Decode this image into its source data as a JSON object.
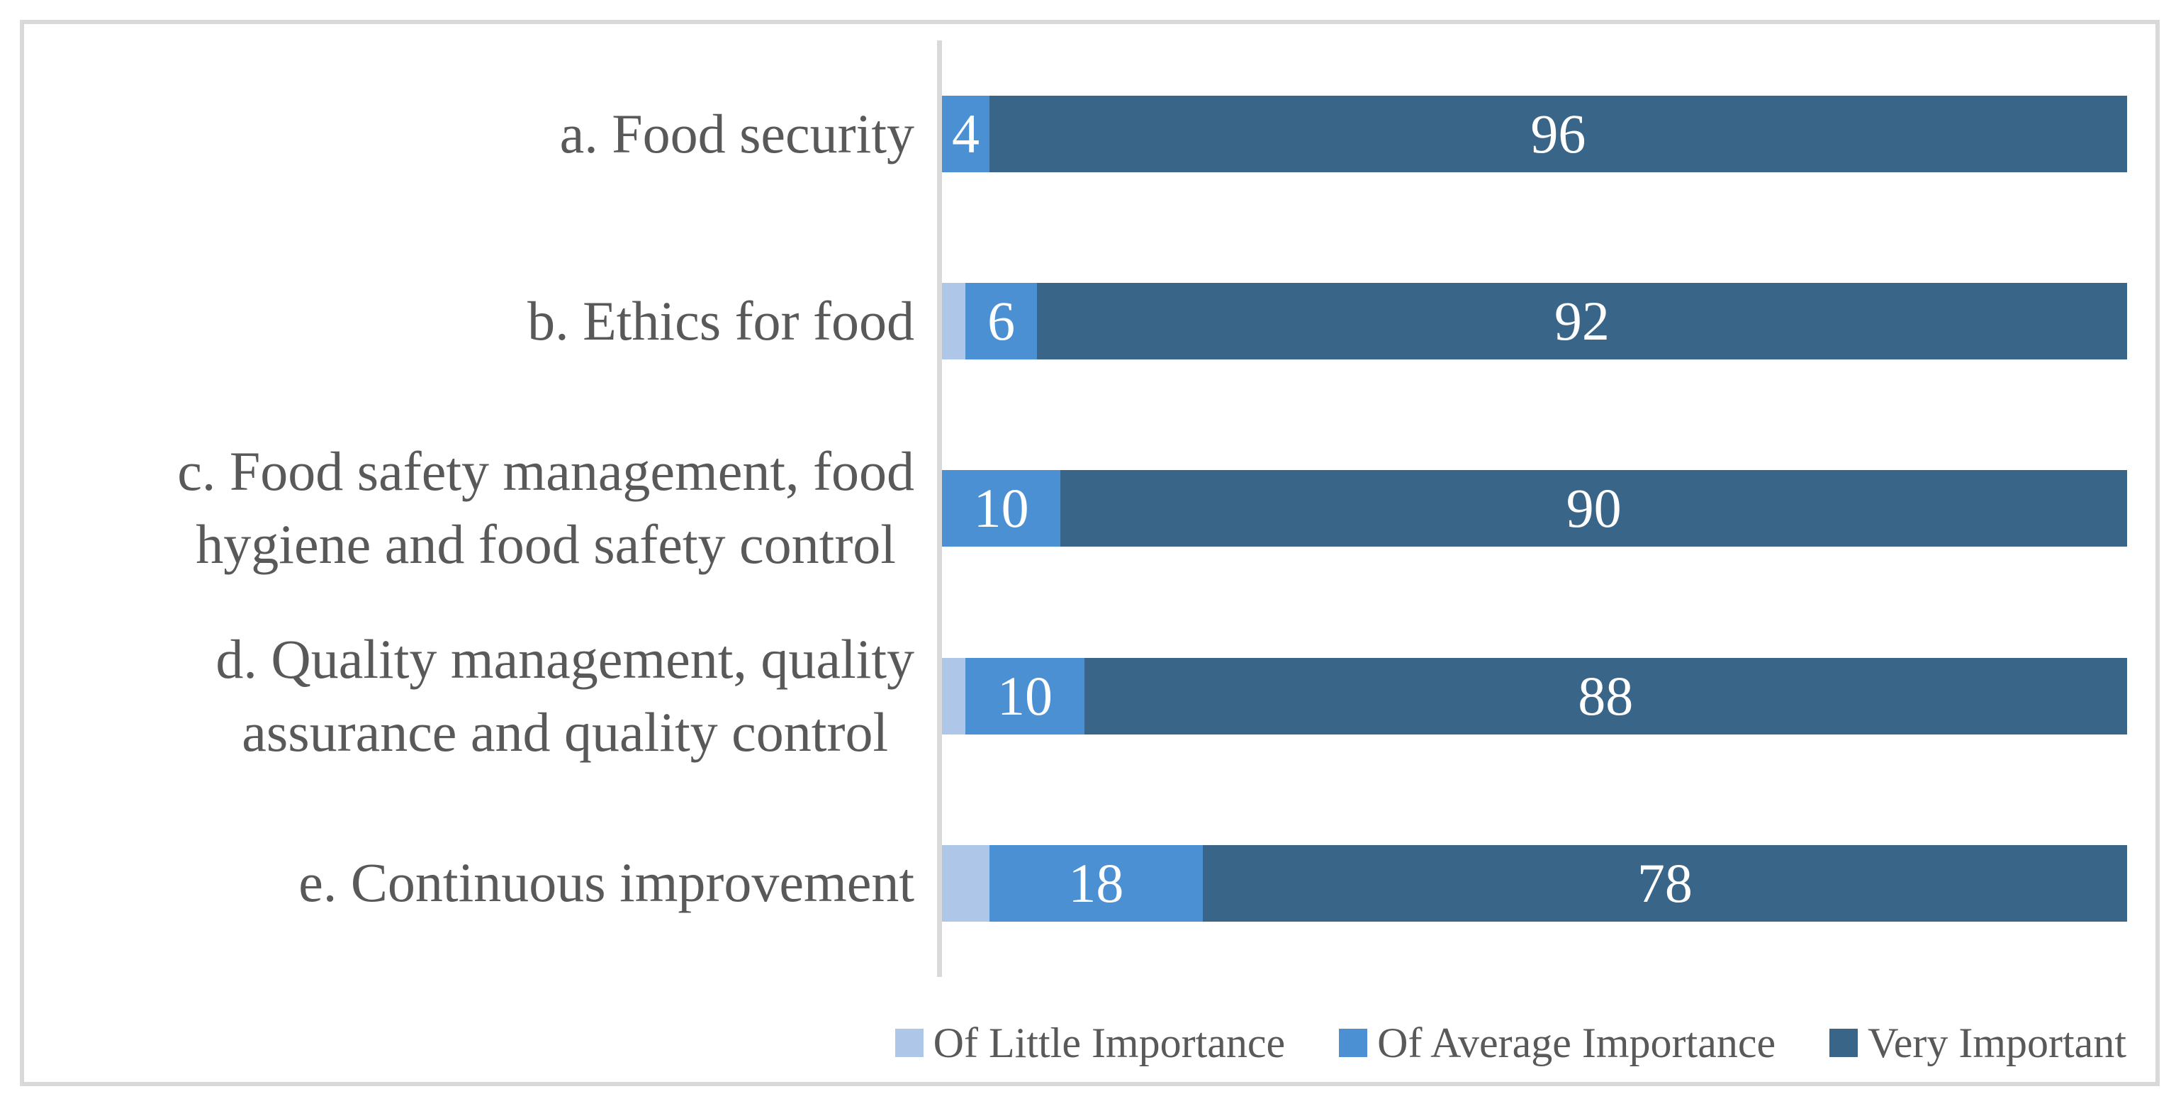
{
  "chart_data": {
    "type": "bar",
    "orientation": "horizontal",
    "stacked": true,
    "unit": "percent",
    "xlim": [
      0,
      100
    ],
    "grid": false,
    "legend_position": "bottom-right",
    "axis_color": "#d9d9d9",
    "label_color": "#595959",
    "value_label_color": "#ffffff",
    "categories": [
      "a. Food security",
      "b. Ethics for food",
      "c. Food safety management, food\nhygiene and food safety control",
      "d. Quality management, quality\nassurance and quality control",
      "e. Continuous improvement"
    ],
    "series": [
      {
        "key": "little-importance",
        "name": "Of Little Importance",
        "color": "#AEC7E8",
        "data_labels_shown": false,
        "values": [
          0,
          2,
          0,
          2,
          4
        ]
      },
      {
        "key": "average-importance",
        "name": "Of Average Importance",
        "color": "#4A90D2",
        "data_labels_shown": true,
        "values": [
          4,
          6,
          10,
          10,
          18
        ]
      },
      {
        "key": "very-important",
        "name": "Very Important",
        "color": "#396589",
        "data_labels_shown": true,
        "values": [
          96,
          92,
          90,
          88,
          78
        ]
      }
    ]
  }
}
